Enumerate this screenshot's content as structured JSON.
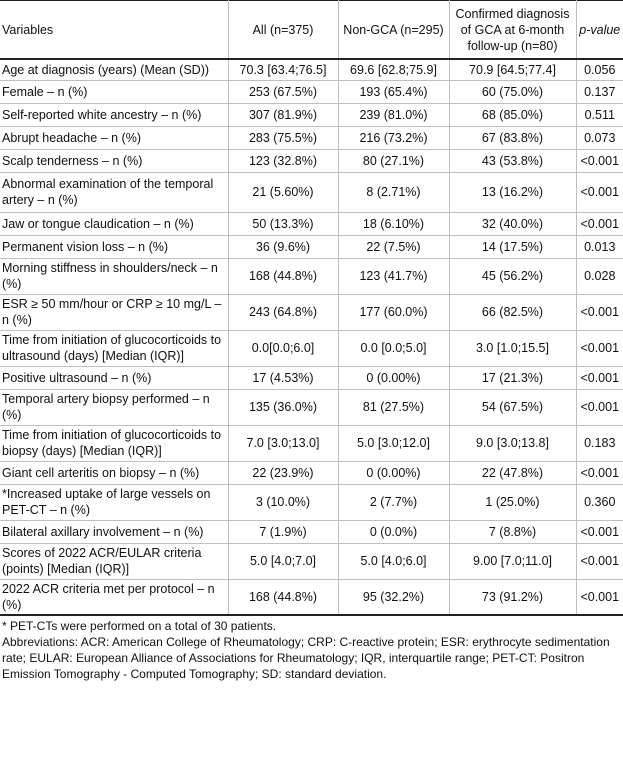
{
  "headers": [
    "Variables",
    "All (n=375)",
    "Non-GCA (n=295)",
    "Confirmed diagnosis of GCA at 6-month follow-up (n=80)",
    "p-value"
  ],
  "rows": [
    [
      "Age at diagnosis (years) (Mean (SD))",
      "70.3 [63.4;76.5]",
      "69.6 [62.8;75.9]",
      "70.9 [64.5;77.4]",
      "0.056"
    ],
    [
      "Female – n (%)",
      "253 (67.5%)",
      "193 (65.4%)",
      "60 (75.0%)",
      "0.137"
    ],
    [
      "Self-reported white ancestry – n (%)",
      "307 (81.9%)",
      "239 (81.0%)",
      "68 (85.0%)",
      "0.511"
    ],
    [
      "Abrupt headache – n (%)",
      "283 (75.5%)",
      "216 (73.2%)",
      "67 (83.8%)",
      "0.073"
    ],
    [
      "Scalp tenderness – n (%)",
      "123 (32.8%)",
      "80 (27.1%)",
      "43 (53.8%)",
      "<0.001"
    ],
    [
      "Abnormal examination of the temporal artery – n (%)",
      "21 (5.60%)",
      "8 (2.71%)",
      "13 (16.2%)",
      "<0.001"
    ],
    [
      "Jaw or tongue claudication – n (%)",
      "50 (13.3%)",
      "18 (6.10%)",
      "32 (40.0%)",
      "<0.001"
    ],
    [
      "Permanent vision loss – n (%)",
      "36 (9.6%)",
      "22 (7.5%)",
      "14 (17.5%)",
      "0.013"
    ],
    [
      "Morning stiffness in shoulders/neck – n (%)",
      "168 (44.8%)",
      "123 (41.7%)",
      "45 (56.2%)",
      "0.028"
    ],
    [
      "ESR ≥ 50 mm/hour or CRP ≥ 10 mg/L – n (%)",
      "243 (64.8%)",
      "177 (60.0%)",
      "66 (82.5%)",
      "<0.001"
    ],
    [
      "Time from initiation of glucocorticoids to ultrasound (days) [Median (IQR)]",
      "0.0[0.0;6.0]",
      "0.0 [0.0;5.0]",
      "3.0 [1.0;15.5]",
      "<0.001"
    ],
    [
      "Positive ultrasound – n (%)",
      "17 (4.53%)",
      "0 (0.00%)",
      "17 (21.3%)",
      "<0.001"
    ],
    [
      "Temporal artery biopsy performed – n (%)",
      "135 (36.0%)",
      "81 (27.5%)",
      "54 (67.5%)",
      "<0.001"
    ],
    [
      "Time from initiation of glucocorticoids to biopsy (days) [Median (IQR)]",
      "7.0 [3.0;13.0]",
      "5.0 [3.0;12.0]",
      "9.0 [3.0;13.8]",
      "0.183"
    ],
    [
      "Giant cell arteritis on biopsy – n (%)",
      "22 (23.9%)",
      "0 (0.00%)",
      "22 (47.8%)",
      "<0.001"
    ],
    [
      "*Increased uptake of large vessels on PET-CT – n (%)",
      "3 (10.0%)",
      "2 (7.7%)",
      "1 (25.0%)",
      "0.360"
    ],
    [
      "Bilateral axillary involvement – n (%)",
      "7 (1.9%)",
      "0 (0.0%)",
      "7 (8.8%)",
      "<0.001"
    ],
    [
      "Scores of 2022 ACR/EULAR criteria (points) [Median (IQR)]",
      "5.0 [4.0;7.0]",
      "5.0 [4.0;6.0]",
      "9.00 [7.0;11.0]",
      "<0.001"
    ],
    [
      "2022 ACR criteria met per protocol – n (%)",
      "168 (44.8%)",
      "95 (32.2%)",
      "73 (91.2%)",
      "<0.001"
    ]
  ],
  "footnotes": {
    "pet_note": "* PET-CTs were performed on a total of 30 patients.",
    "abbreviations": "Abbreviations: ACR: American College of Rheumatology; CRP: C-reactive protein; ESR: erythrocyte sedimentation rate; EULAR: European Alliance of Associations for Rheumatology; IQR, interquartile range; PET-CT: Positron Emission Tomography - Computed Tomography; SD: standard deviation."
  }
}
